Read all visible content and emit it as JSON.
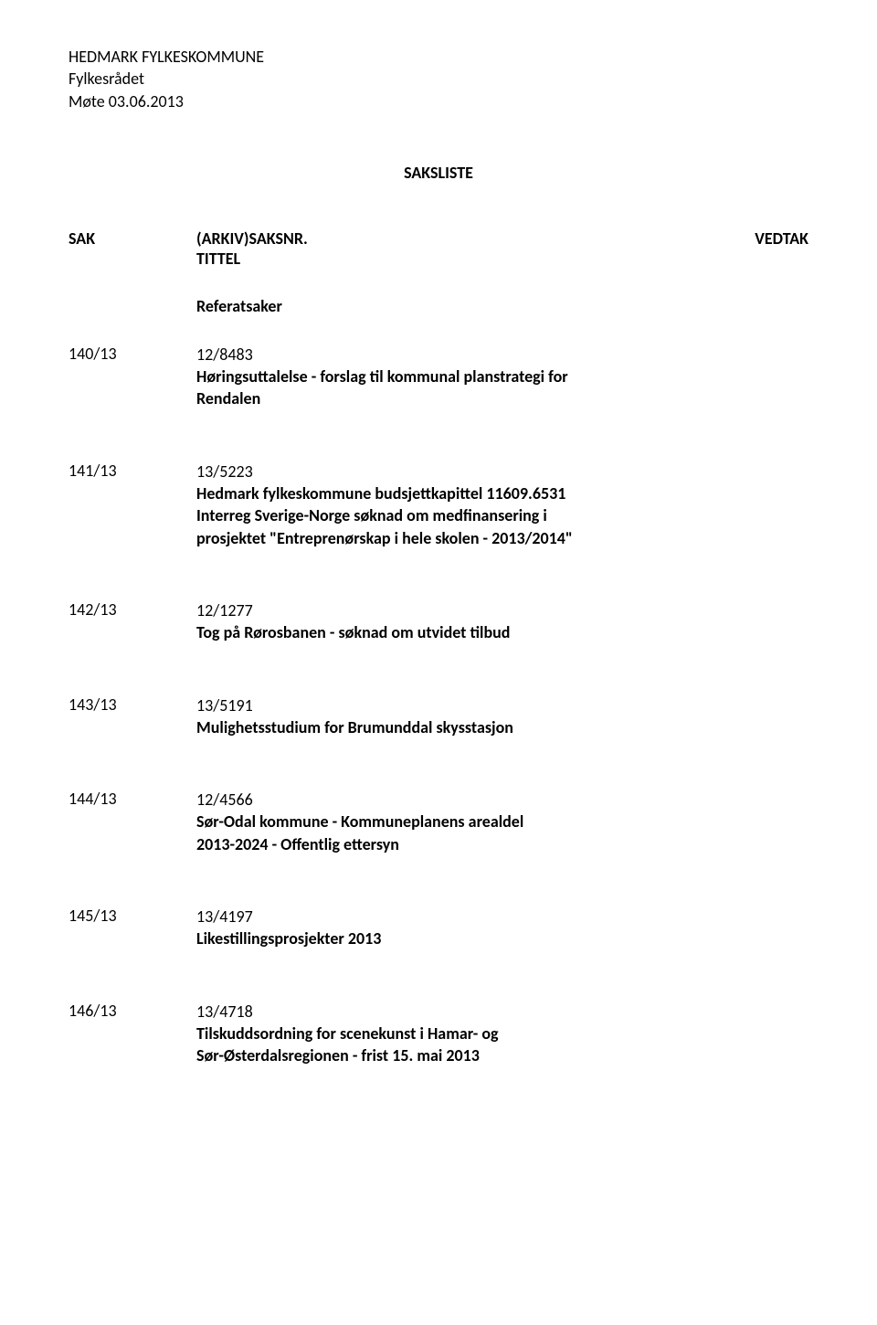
{
  "header": {
    "line1": "HEDMARK FYLKESKOMMUNE",
    "line2": "Fylkesrådet",
    "line3": "Møte 03.06.2013"
  },
  "saksliste_title": "SAKSLISTE",
  "columns": {
    "sak": "SAK",
    "arkiv": "(ARKIV)SAKSNR.",
    "tittel": "TITTEL",
    "vedtak": "VEDTAK"
  },
  "referatsaker_label": "Referatsaker",
  "items": [
    {
      "sak": "140/13",
      "arkiv": "12/8483",
      "title_lines": [
        "Høringsuttalelse - forslag til kommunal planstrategi for",
        "Rendalen"
      ]
    },
    {
      "sak": "141/13",
      "arkiv": "13/5223",
      "title_lines": [
        "Hedmark fylkeskommune budsjettkapittel 11609.6531",
        "Interreg Sverige-Norge søknad om medfinansering i",
        "prosjektet \"Entreprenørskap i hele skolen - 2013/2014\""
      ]
    },
    {
      "sak": "142/13",
      "arkiv": "12/1277",
      "title_lines": [
        "Tog på Rørosbanen - søknad om utvidet tilbud"
      ]
    },
    {
      "sak": "143/13",
      "arkiv": "13/5191",
      "title_lines": [
        "Mulighetsstudium for Brumunddal skysstasjon"
      ]
    },
    {
      "sak": "144/13",
      "arkiv": "12/4566",
      "title_lines": [
        "Sør-Odal kommune - Kommuneplanens arealdel",
        "2013-2024 - Offentlig ettersyn"
      ]
    },
    {
      "sak": "145/13",
      "arkiv": "13/4197",
      "title_lines": [
        "Likestillingsprosjekter 2013"
      ]
    },
    {
      "sak": "146/13",
      "arkiv": "13/4718",
      "title_lines": [
        "Tilskuddsordning for scenekunst i Hamar- og",
        "Sør-Østerdalsregionen - frist 15. mai 2013"
      ]
    }
  ]
}
